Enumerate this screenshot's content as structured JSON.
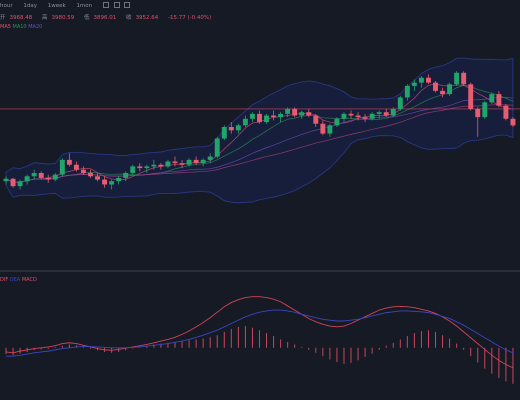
{
  "toolbar": {
    "timeframes": [
      "hour",
      "1day",
      "1week",
      "1mon"
    ],
    "icons": [
      "indicator-icon",
      "settings-icon",
      "fullscreen-icon"
    ]
  },
  "ohlc": {
    "items": [
      {
        "label": "开",
        "value": "3968.48"
      },
      {
        "label": "高",
        "value": "3980.59"
      },
      {
        "label": "低",
        "value": "3896.01"
      },
      {
        "label": "收",
        "value": "3952.64"
      },
      {
        "label": "",
        "value": "-15.77 (-0.40%)"
      }
    ]
  },
  "ma_legend": {
    "items": [
      {
        "label": "MA5",
        "color": "#e0506c"
      },
      {
        "label": "MA10",
        "color": "#2f8f55"
      },
      {
        "label": "MA20",
        "color": "#6e4fc0"
      }
    ]
  },
  "macd_legend": {
    "items": [
      {
        "label": "DIF",
        "color": "#e0506c"
      },
      {
        "label": "DEA",
        "color": "#3a46c0"
      },
      {
        "label": "MACD",
        "color": "#e0506c"
      }
    ]
  },
  "chart_data": {
    "type": "candlestick",
    "price_range": [
      3000,
      4400
    ],
    "reference_line": 3950,
    "candles": [
      [
        3510,
        3540,
        3490,
        3525
      ],
      [
        3525,
        3530,
        3470,
        3480
      ],
      [
        3480,
        3520,
        3460,
        3510
      ],
      [
        3510,
        3550,
        3490,
        3540
      ],
      [
        3540,
        3580,
        3520,
        3560
      ],
      [
        3560,
        3570,
        3520,
        3530
      ],
      [
        3530,
        3550,
        3500,
        3520
      ],
      [
        3520,
        3560,
        3510,
        3550
      ],
      [
        3550,
        3650,
        3540,
        3640
      ],
      [
        3640,
        3680,
        3600,
        3610
      ],
      [
        3610,
        3630,
        3570,
        3580
      ],
      [
        3580,
        3600,
        3550,
        3560
      ],
      [
        3560,
        3580,
        3530,
        3540
      ],
      [
        3540,
        3560,
        3510,
        3520
      ],
      [
        3520,
        3540,
        3470,
        3490
      ],
      [
        3490,
        3520,
        3460,
        3510
      ],
      [
        3510,
        3540,
        3490,
        3530
      ],
      [
        3530,
        3570,
        3510,
        3560
      ],
      [
        3560,
        3610,
        3550,
        3600
      ],
      [
        3600,
        3620,
        3570,
        3590
      ],
      [
        3590,
        3610,
        3560,
        3600
      ],
      [
        3600,
        3640,
        3580,
        3610
      ],
      [
        3610,
        3620,
        3580,
        3600
      ],
      [
        3600,
        3640,
        3590,
        3630
      ],
      [
        3630,
        3660,
        3600,
        3620
      ],
      [
        3620,
        3640,
        3590,
        3610
      ],
      [
        3610,
        3650,
        3600,
        3640
      ],
      [
        3640,
        3660,
        3610,
        3620
      ],
      [
        3620,
        3650,
        3600,
        3640
      ],
      [
        3640,
        3680,
        3620,
        3660
      ],
      [
        3660,
        3780,
        3650,
        3770
      ],
      [
        3770,
        3850,
        3760,
        3840
      ],
      [
        3840,
        3870,
        3800,
        3820
      ],
      [
        3820,
        3860,
        3800,
        3850
      ],
      [
        3850,
        3910,
        3840,
        3890
      ],
      [
        3890,
        3930,
        3870,
        3920
      ],
      [
        3920,
        3940,
        3860,
        3870
      ],
      [
        3870,
        3920,
        3860,
        3910
      ],
      [
        3910,
        3940,
        3880,
        3900
      ],
      [
        3900,
        3930,
        3870,
        3920
      ],
      [
        3920,
        3960,
        3900,
        3950
      ],
      [
        3950,
        3960,
        3900,
        3910
      ],
      [
        3910,
        3940,
        3890,
        3930
      ],
      [
        3930,
        3950,
        3900,
        3910
      ],
      [
        3910,
        3920,
        3840,
        3860
      ],
      [
        3860,
        3880,
        3790,
        3800
      ],
      [
        3800,
        3860,
        3780,
        3850
      ],
      [
        3850,
        3900,
        3840,
        3890
      ],
      [
        3890,
        3930,
        3870,
        3920
      ],
      [
        3920,
        3940,
        3890,
        3910
      ],
      [
        3910,
        3930,
        3880,
        3900
      ],
      [
        3900,
        3920,
        3870,
        3890
      ],
      [
        3890,
        3930,
        3880,
        3920
      ],
      [
        3920,
        3940,
        3890,
        3930
      ],
      [
        3930,
        3950,
        3900,
        3910
      ],
      [
        3910,
        3960,
        3900,
        3950
      ],
      [
        3950,
        4030,
        3940,
        4020
      ],
      [
        4020,
        4100,
        4000,
        4090
      ],
      [
        4090,
        4130,
        4060,
        4110
      ],
      [
        4110,
        4150,
        4080,
        4140
      ],
      [
        4140,
        4160,
        4100,
        4110
      ],
      [
        4110,
        4120,
        4050,
        4060
      ],
      [
        4060,
        4080,
        4020,
        4040
      ],
      [
        4040,
        4110,
        4030,
        4100
      ],
      [
        4100,
        4180,
        4090,
        4170
      ],
      [
        4170,
        4180,
        4090,
        4100
      ],
      [
        4100,
        4110,
        3940,
        3950
      ],
      [
        3950,
        3960,
        3780,
        3900
      ],
      [
        3900,
        4000,
        3890,
        3990
      ],
      [
        3990,
        4050,
        3980,
        4040
      ],
      [
        4040,
        4060,
        3960,
        3970
      ],
      [
        3970,
        3980,
        3880,
        3890
      ],
      [
        3890,
        3900,
        3840,
        3850
      ]
    ],
    "macd_hist": [
      -0.15,
      -0.18,
      -0.14,
      -0.1,
      -0.06,
      -0.04,
      -0.03,
      0.02,
      0.05,
      0.08,
      0.06,
      0.03,
      -0.02,
      -0.06,
      -0.1,
      -0.12,
      -0.1,
      -0.06,
      -0.02,
      0.03,
      0.05,
      0.08,
      0.1,
      0.12,
      0.14,
      0.16,
      0.18,
      0.2,
      0.22,
      0.25,
      0.3,
      0.38,
      0.45,
      0.5,
      0.52,
      0.48,
      0.42,
      0.35,
      0.28,
      0.2,
      0.14,
      0.08,
      0.02,
      -0.05,
      -0.12,
      -0.2,
      -0.28,
      -0.34,
      -0.38,
      -0.36,
      -0.3,
      -0.22,
      -0.14,
      -0.05,
      0.05,
      0.12,
      0.2,
      0.28,
      0.35,
      0.4,
      0.42,
      0.38,
      0.3,
      0.22,
      0.1,
      -0.05,
      -0.2,
      -0.35,
      -0.5,
      -0.62,
      -0.72,
      -0.8,
      -0.86
    ],
    "dif": [
      -0.1,
      -0.12,
      -0.08,
      -0.05,
      -0.02,
      0.0,
      0.02,
      0.05,
      0.1,
      0.12,
      0.1,
      0.06,
      0.02,
      -0.02,
      -0.05,
      -0.06,
      -0.04,
      -0.01,
      0.02,
      0.05,
      0.08,
      0.12,
      0.16,
      0.2,
      0.25,
      0.32,
      0.4,
      0.5,
      0.6,
      0.72,
      0.85,
      0.98,
      1.08,
      1.15,
      1.2,
      1.22,
      1.22,
      1.2,
      1.16,
      1.1,
      1.0,
      0.9,
      0.8,
      0.7,
      0.62,
      0.56,
      0.52,
      0.5,
      0.52,
      0.58,
      0.66,
      0.74,
      0.82,
      0.9,
      0.95,
      0.98,
      0.99,
      0.98,
      0.96,
      0.92,
      0.88,
      0.82,
      0.74,
      0.64,
      0.52,
      0.38,
      0.24,
      0.1,
      -0.04,
      -0.18,
      -0.3,
      -0.4,
      -0.48
    ],
    "dea": [
      -0.2,
      -0.2,
      -0.18,
      -0.15,
      -0.12,
      -0.1,
      -0.08,
      -0.05,
      -0.02,
      0.0,
      0.02,
      0.03,
      0.03,
      0.02,
      0.01,
      0.0,
      0.0,
      0.0,
      0.01,
      0.02,
      0.04,
      0.06,
      0.08,
      0.1,
      0.13,
      0.16,
      0.2,
      0.25,
      0.3,
      0.36,
      0.42,
      0.5,
      0.58,
      0.66,
      0.74,
      0.8,
      0.85,
      0.88,
      0.9,
      0.9,
      0.88,
      0.85,
      0.8,
      0.76,
      0.72,
      0.68,
      0.66,
      0.64,
      0.64,
      0.66,
      0.68,
      0.72,
      0.76,
      0.8,
      0.84,
      0.86,
      0.88,
      0.88,
      0.87,
      0.86,
      0.84,
      0.8,
      0.75,
      0.7,
      0.62,
      0.54,
      0.44,
      0.34,
      0.24,
      0.14,
      0.04,
      -0.05,
      -0.12
    ],
    "macd_range": [
      -1.2,
      1.5
    ]
  }
}
